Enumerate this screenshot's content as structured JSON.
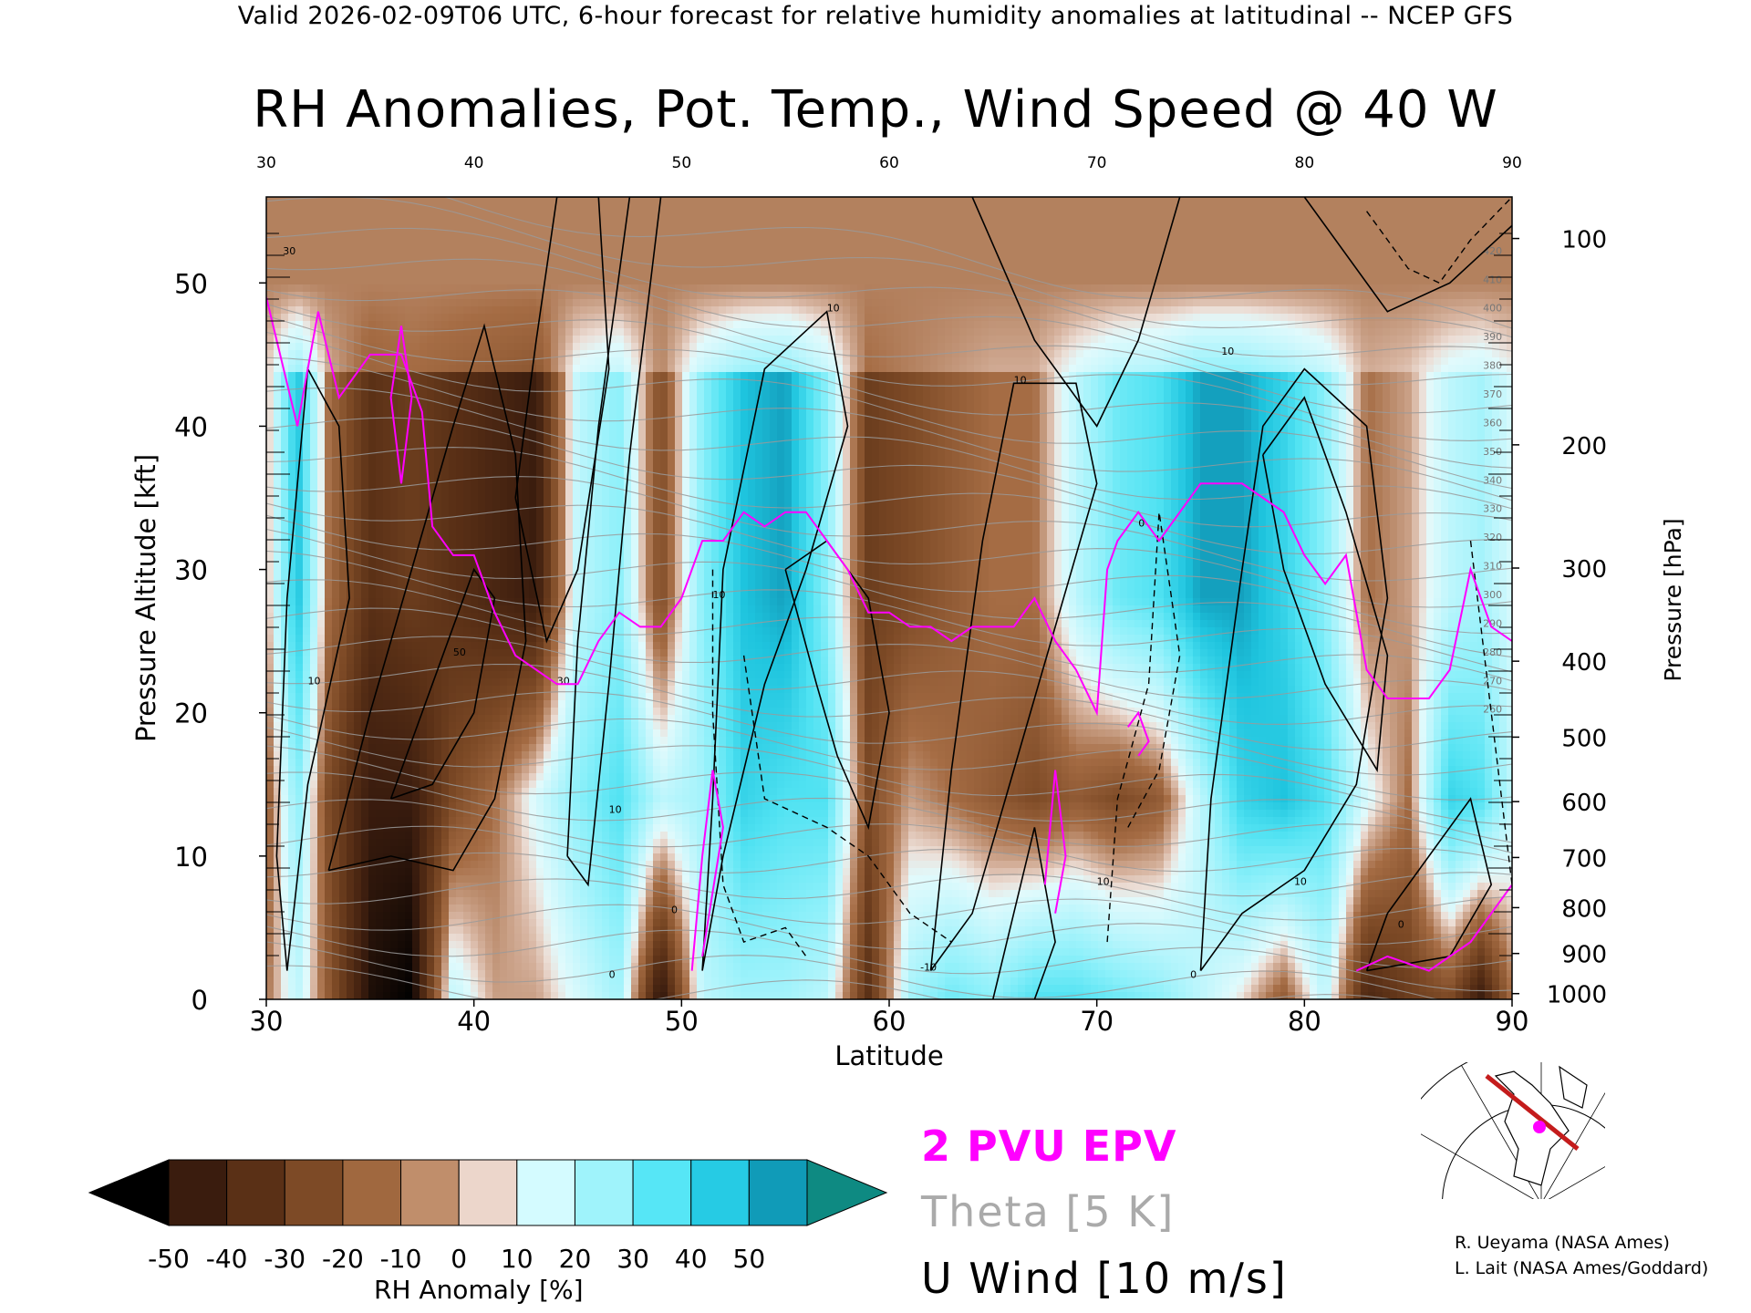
{
  "header": "Valid 2026-02-09T06 UTC, 6-hour forecast for relative humidity anomalies at latitudinal -- NCEP GFS",
  "chart_data": {
    "type": "heatmap",
    "title": "RH Anomalies, Pot. Temp., Wind Speed @ 40 W",
    "xlabel": "Latitude",
    "ylabel": "Pressure Altitude [kft]",
    "y2label": "Pressure [hPa]",
    "xlim": [
      30,
      90
    ],
    "ylim": [
      0,
      56
    ],
    "x_ticks": [
      "30",
      "40",
      "50",
      "60",
      "70",
      "80",
      "90"
    ],
    "y_ticks": [
      "0",
      "10",
      "20",
      "30",
      "40",
      "50"
    ],
    "pressure_ticks": [
      {
        "label": "100",
        "kft": 53.1
      },
      {
        "label": "200",
        "kft": 38.7
      },
      {
        "label": "300",
        "kft": 30.1
      },
      {
        "label": "400",
        "kft": 23.6
      },
      {
        "label": "500",
        "kft": 18.3
      },
      {
        "label": "600",
        "kft": 13.8
      },
      {
        "label": "700",
        "kft": 9.9
      },
      {
        "label": "800",
        "kft": 6.4
      },
      {
        "label": "900",
        "kft": 3.2
      },
      {
        "label": "1000",
        "kft": 0.4
      }
    ],
    "rh_columns": [
      {
        "lat": 30,
        "upper": -5,
        "mid": -15,
        "low": -10
      },
      {
        "lat": 31.5,
        "upper": 40,
        "mid": 20,
        "low": 10
      },
      {
        "lat": 33,
        "upper": -10,
        "mid": -20,
        "low": -15
      },
      {
        "lat": 35,
        "upper": -30,
        "mid": -40,
        "low": -45
      },
      {
        "lat": 37,
        "upper": -25,
        "mid": -40,
        "low": -50
      },
      {
        "lat": 39,
        "upper": -30,
        "mid": -20,
        "low": 10
      },
      {
        "lat": 41,
        "upper": -35,
        "mid": -10,
        "low": -5
      },
      {
        "lat": 43,
        "upper": -40,
        "mid": 5,
        "low": -5
      },
      {
        "lat": 45,
        "upper": 10,
        "mid": 20,
        "low": 5
      },
      {
        "lat": 47,
        "upper": 20,
        "mid": 30,
        "low": 15
      },
      {
        "lat": 49,
        "upper": -20,
        "mid": 10,
        "low": -45
      },
      {
        "lat": 51,
        "upper": 20,
        "mid": 15,
        "low": 10
      },
      {
        "lat": 53,
        "upper": 40,
        "mid": 35,
        "low": 15
      },
      {
        "lat": 55,
        "upper": 45,
        "mid": 30,
        "low": 15
      },
      {
        "lat": 57,
        "upper": 20,
        "mid": 30,
        "low": 10
      },
      {
        "lat": 59,
        "upper": -25,
        "mid": -20,
        "low": -30
      },
      {
        "lat": 61,
        "upper": -20,
        "mid": -5,
        "low": 15
      },
      {
        "lat": 63,
        "upper": -15,
        "mid": -10,
        "low": 25
      },
      {
        "lat": 65,
        "upper": -10,
        "mid": -15,
        "low": 20
      },
      {
        "lat": 67,
        "upper": -10,
        "mid": -20,
        "low": 30
      },
      {
        "lat": 69,
        "upper": 10,
        "mid": -15,
        "low": 30
      },
      {
        "lat": 71,
        "upper": 25,
        "mid": -20,
        "low": 25
      },
      {
        "lat": 73,
        "upper": 30,
        "mid": -15,
        "low": 20
      },
      {
        "lat": 75,
        "upper": 45,
        "mid": 10,
        "low": 10
      },
      {
        "lat": 77,
        "upper": 45,
        "mid": 35,
        "low": 0
      },
      {
        "lat": 79,
        "upper": 35,
        "mid": 40,
        "low": -15
      },
      {
        "lat": 81,
        "upper": 20,
        "mid": 30,
        "low": 10
      },
      {
        "lat": 83,
        "upper": -10,
        "mid": 5,
        "low": -35
      },
      {
        "lat": 85,
        "upper": -5,
        "mid": -10,
        "low": -25
      },
      {
        "lat": 87,
        "upper": 10,
        "mid": 35,
        "low": -20
      },
      {
        "lat": 88.5,
        "upper": 15,
        "mid": 30,
        "low": -40
      },
      {
        "lat": 90,
        "upper": 5,
        "mid": 10,
        "low": -10
      }
    ],
    "theta_labels": [
      "420",
      "410",
      "400",
      "390",
      "380",
      "370",
      "360",
      "350",
      "340",
      "330",
      "320",
      "310",
      "300",
      "290",
      "280",
      "270",
      "260"
    ],
    "epv_2pvu": [
      [
        30,
        49
      ],
      [
        31.5,
        40
      ],
      [
        32.5,
        48
      ],
      [
        33.5,
        42
      ],
      [
        35,
        45
      ],
      [
        36.5,
        45
      ],
      [
        37.5,
        41
      ],
      [
        38,
        33
      ],
      [
        39,
        31
      ],
      [
        40,
        31
      ],
      [
        41,
        27
      ],
      [
        42,
        24
      ],
      [
        43,
        23
      ],
      [
        44,
        22
      ],
      [
        45,
        22
      ],
      [
        46,
        25
      ],
      [
        47,
        27
      ],
      [
        48,
        26
      ],
      [
        49,
        26
      ],
      [
        50,
        28
      ],
      [
        51,
        32
      ],
      [
        52,
        32
      ],
      [
        53,
        34
      ],
      [
        54,
        33
      ],
      [
        55,
        34
      ],
      [
        56,
        34
      ],
      [
        57,
        32
      ],
      [
        58,
        30
      ],
      [
        59,
        27
      ],
      [
        60,
        27
      ],
      [
        61,
        26
      ],
      [
        62,
        26
      ],
      [
        63,
        25
      ],
      [
        64,
        26
      ],
      [
        65,
        26
      ],
      [
        66,
        26
      ],
      [
        67,
        28
      ],
      [
        68,
        25
      ],
      [
        69,
        23
      ],
      [
        70,
        20
      ],
      [
        70.5,
        30
      ],
      [
        71,
        32
      ],
      [
        72,
        34
      ],
      [
        73,
        32
      ],
      [
        74,
        34
      ],
      [
        75,
        36
      ],
      [
        76,
        36
      ],
      [
        77,
        36
      ],
      [
        78,
        35
      ],
      [
        79,
        34
      ],
      [
        80,
        31
      ],
      [
        81,
        29
      ],
      [
        82,
        31
      ],
      [
        83,
        23
      ],
      [
        84,
        21
      ],
      [
        85,
        21
      ],
      [
        86,
        21
      ],
      [
        87,
        23
      ],
      [
        88,
        30
      ],
      [
        89,
        26
      ],
      [
        90,
        25
      ]
    ],
    "u_wind_contour_labels": [
      "30",
      "10",
      "50",
      "30",
      "10",
      "0",
      "10",
      "0",
      "10",
      "10",
      "0",
      "10",
      "10",
      "0",
      "0",
      "10",
      "-10"
    ],
    "colorbar": {
      "label": "RH Anomaly [%]",
      "ticks": [
        "-50",
        "-40",
        "-30",
        "-20",
        "-10",
        "0",
        "10",
        "20",
        "30",
        "40",
        "50"
      ],
      "colors": [
        "#000000",
        "#3a1c0e",
        "#5a3016",
        "#7d4a26",
        "#a0683f",
        "#c08e6b",
        "#ecd6cb",
        "#d4fbff",
        "#9ff3fb",
        "#56e6f6",
        "#26cbe4",
        "#109bb8",
        "#0e8a82"
      ]
    }
  },
  "legend": {
    "epv": "2 PVU EPV",
    "theta": "Theta [5 K]",
    "wind": "U Wind [10 m/s]"
  },
  "credits": {
    "line1": "R. Ueyama (NASA Ames)",
    "line2": "L. Lait (NASA Ames/Goddard)"
  },
  "colors": {
    "epv": "#ff00ff",
    "theta": "#aaaaaa",
    "transect": "#c41c1c",
    "point": "#ff00ff"
  }
}
